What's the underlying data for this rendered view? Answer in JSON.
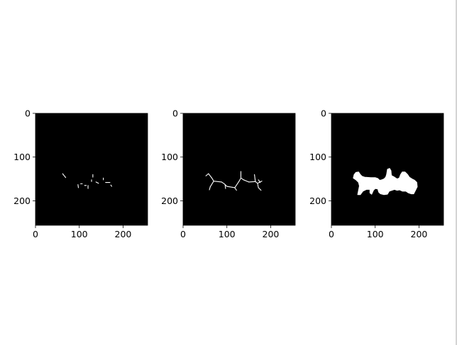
{
  "figure": {
    "background": "#ffffff",
    "panel_background": "#000000",
    "foreground": "#ffffff"
  },
  "chart_data": [
    {
      "type": "heatmap",
      "title": "",
      "xlabel": "",
      "ylabel": "",
      "xlim": [
        0,
        256
      ],
      "ylim": [
        256,
        0
      ],
      "xticks": [
        "0",
        "100",
        "200"
      ],
      "yticks": [
        "0",
        "100",
        "200"
      ],
      "grid": false,
      "content": "sparse skeleton points",
      "segments": [
        [
          [
            62,
            138
          ],
          [
            65,
            142
          ]
        ],
        [
          [
            66,
            143
          ],
          [
            69,
            147
          ]
        ],
        [
          [
            97,
            163
          ],
          [
            98,
            170
          ]
        ],
        [
          [
            103,
            161
          ],
          [
            107,
            161
          ]
        ],
        [
          [
            120,
            165
          ],
          [
            120,
            172
          ]
        ],
        [
          [
            128,
            152
          ],
          [
            128,
            156
          ]
        ],
        [
          [
            131,
            140
          ],
          [
            131,
            146
          ]
        ],
        [
          [
            138,
            157
          ],
          [
            144,
            160
          ]
        ],
        [
          [
            155,
            148
          ],
          [
            155,
            152
          ]
        ],
        [
          [
            160,
            158
          ],
          [
            170,
            158
          ]
        ],
        [
          [
            172,
            164
          ],
          [
            174,
            167
          ]
        ],
        [
          [
            112,
            165
          ],
          [
            116,
            165
          ]
        ]
      ]
    },
    {
      "type": "heatmap",
      "title": "",
      "xlabel": "",
      "ylabel": "",
      "xlim": [
        0,
        256
      ],
      "ylim": [
        256,
        0
      ],
      "xticks": [
        "0",
        "100",
        "200"
      ],
      "yticks": [
        "0",
        "100",
        "200"
      ],
      "grid": false,
      "content": "connected skeleton",
      "segments": [
        [
          [
            52,
            143
          ],
          [
            58,
            138
          ]
        ],
        [
          [
            58,
            138
          ],
          [
            65,
            147
          ]
        ],
        [
          [
            65,
            147
          ],
          [
            70,
            155
          ]
        ],
        [
          [
            70,
            155
          ],
          [
            62,
            168
          ]
        ],
        [
          [
            62,
            168
          ],
          [
            60,
            175
          ]
        ],
        [
          [
            70,
            155
          ],
          [
            88,
            157
          ]
        ],
        [
          [
            88,
            157
          ],
          [
            95,
            162
          ]
        ],
        [
          [
            95,
            162
          ],
          [
            100,
            167
          ]
        ],
        [
          [
            100,
            167
          ],
          [
            118,
            170
          ]
        ],
        [
          [
            118,
            170
          ],
          [
            122,
            176
          ]
        ],
        [
          [
            118,
            170
          ],
          [
            128,
            155
          ]
        ],
        [
          [
            128,
            155
          ],
          [
            132,
            148
          ]
        ],
        [
          [
            132,
            148
          ],
          [
            132,
            133
          ]
        ],
        [
          [
            132,
            148
          ],
          [
            138,
            152
          ]
        ],
        [
          [
            138,
            152
          ],
          [
            150,
            157
          ]
        ],
        [
          [
            150,
            157
          ],
          [
            165,
            156
          ]
        ],
        [
          [
            165,
            156
          ],
          [
            170,
            160
          ]
        ],
        [
          [
            165,
            156
          ],
          [
            163,
            140
          ]
        ],
        [
          [
            170,
            160
          ],
          [
            180,
            155
          ]
        ],
        [
          [
            170,
            160
          ],
          [
            172,
            170
          ]
        ],
        [
          [
            172,
            170
          ],
          [
            178,
            176
          ]
        ],
        [
          [
            96,
            164
          ],
          [
            97,
            172
          ]
        ],
        [
          [
            172,
            152
          ],
          [
            176,
            158
          ]
        ]
      ]
    },
    {
      "type": "heatmap",
      "title": "",
      "xlabel": "",
      "ylabel": "",
      "xlim": [
        0,
        256
      ],
      "ylim": [
        256,
        0
      ],
      "xticks": [
        "0",
        "100",
        "200"
      ],
      "yticks": [
        "0",
        "100",
        "200"
      ],
      "grid": false,
      "content": "filled segmentation mask",
      "polygon": [
        [
          50,
          148
        ],
        [
          52,
          140
        ],
        [
          56,
          135
        ],
        [
          62,
          134
        ],
        [
          66,
          140
        ],
        [
          70,
          144
        ],
        [
          76,
          146
        ],
        [
          90,
          147
        ],
        [
          100,
          147
        ],
        [
          106,
          149
        ],
        [
          110,
          153
        ],
        [
          115,
          152
        ],
        [
          120,
          150
        ],
        [
          124,
          146
        ],
        [
          126,
          140
        ],
        [
          128,
          128
        ],
        [
          133,
          126
        ],
        [
          136,
          131
        ],
        [
          137,
          142
        ],
        [
          144,
          146
        ],
        [
          150,
          150
        ],
        [
          155,
          148
        ],
        [
          158,
          140
        ],
        [
          162,
          134
        ],
        [
          168,
          134
        ],
        [
          174,
          140
        ],
        [
          178,
          146
        ],
        [
          184,
          150
        ],
        [
          190,
          153
        ],
        [
          195,
          158
        ],
        [
          196,
          168
        ],
        [
          192,
          176
        ],
        [
          188,
          184
        ],
        [
          182,
          184
        ],
        [
          176,
          182
        ],
        [
          170,
          178
        ],
        [
          162,
          178
        ],
        [
          156,
          175
        ],
        [
          150,
          176
        ],
        [
          144,
          174
        ],
        [
          138,
          176
        ],
        [
          132,
          178
        ],
        [
          128,
          185
        ],
        [
          120,
          186
        ],
        [
          112,
          184
        ],
        [
          108,
          180
        ],
        [
          106,
          173
        ],
        [
          100,
          172
        ],
        [
          96,
          176
        ],
        [
          92,
          185
        ],
        [
          88,
          182
        ],
        [
          88,
          174
        ],
        [
          80,
          174
        ],
        [
          72,
          178
        ],
        [
          66,
          186
        ],
        [
          60,
          186
        ],
        [
          62,
          176
        ],
        [
          64,
          166
        ],
        [
          62,
          158
        ],
        [
          56,
          152
        ]
      ]
    }
  ]
}
